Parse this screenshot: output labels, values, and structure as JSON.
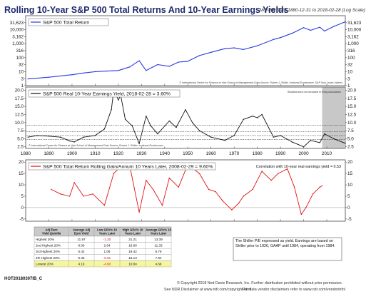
{
  "title": "Rolling 10-Year S&P 500 Total Returns And 10-Year Earnings Yields",
  "subtitle": "Monthly Data 1880-12-31 to 2018-02-28 (Log Scale)",
  "chart_data": [
    {
      "type": "line",
      "scale": "log",
      "legend": "S&P 500 Total Return",
      "legend_position": "top-left",
      "ylim": [
        1,
        100000
      ],
      "y_ticks": [
        "31,623",
        "10,000",
        "3,162",
        "1,000",
        "316",
        "100",
        "32",
        "10",
        "3",
        "1"
      ],
      "y_tick_values": [
        31623,
        10000,
        3162,
        1000,
        316,
        100,
        32,
        10,
        3,
        1
      ],
      "x": [
        1881,
        1890,
        1900,
        1905,
        1910,
        1915,
        1920,
        1925,
        1929,
        1932,
        1937,
        1942,
        1946,
        1950,
        1955,
        1960,
        1966,
        1970,
        1974,
        1980,
        1987,
        1990,
        1995,
        2000,
        2003,
        2007,
        2009,
        2013,
        2018
      ],
      "values": [
        3,
        4,
        6,
        8,
        10,
        11,
        12,
        22,
        60,
        12,
        32,
        24,
        48,
        55,
        140,
        240,
        440,
        500,
        380,
        700,
        2000,
        2700,
        5500,
        14000,
        9000,
        15000,
        8000,
        17000,
        37000
      ],
      "source": "© International Center for Finance at Yale School of Management Data Source: Robert J. Shiller, Irrational Exuberance, S&P Dow Jones Indices"
    },
    {
      "type": "line",
      "legend": "S&P 500 Real 10-Year Earnings Yield, 2018-02-28 = 3.60%",
      "legend_position": "top-left",
      "note": "Shaded area not included in tiling calculation",
      "ylim": [
        2,
        21
      ],
      "y_ticks": [
        "20.0",
        "17.5",
        "15.0",
        "12.5",
        "10.0",
        "7.5",
        "5.0",
        "2.5"
      ],
      "y_tick_values": [
        20,
        17.5,
        15,
        12.5,
        10,
        7.5,
        5,
        2.5
      ],
      "reference_lines": [
        9.2,
        7.2,
        6.0,
        4.8
      ],
      "shaded_x": [
        2008,
        2018
      ],
      "x": [
        1881,
        1885,
        1890,
        1895,
        1899,
        1901,
        1905,
        1910,
        1914,
        1917,
        1918,
        1920,
        1921,
        1923,
        1926,
        1929,
        1932,
        1934,
        1937,
        1942,
        1945,
        1949,
        1952,
        1955,
        1960,
        1966,
        1970,
        1974,
        1978,
        1980,
        1982,
        1987,
        1990,
        1995,
        2000,
        2003,
        2007,
        2009,
        2013,
        2018
      ],
      "values": [
        5.5,
        6.0,
        5.8,
        5.5,
        4.3,
        4.0,
        5.5,
        6.0,
        8.0,
        14.0,
        20.0,
        17.0,
        18.5,
        11.0,
        9.0,
        3.5,
        12.0,
        9.0,
        6.5,
        10.5,
        8.5,
        14.0,
        10.0,
        7.5,
        5.5,
        4.5,
        6.0,
        11.0,
        12.0,
        11.5,
        12.5,
        5.5,
        6.0,
        4.0,
        2.5,
        4.5,
        3.8,
        6.5,
        5.0,
        3.6
      ],
      "source": "© International Center for Finance at Yale School of Management Data Source: Robert J. Shiller, Irrational Exuberance"
    },
    {
      "type": "line",
      "legend": "S&P 500 Total Return Rolling Gain/Annum 10 Years Later, 2008-02-29 = 9.60%",
      "legend_position": "top-left",
      "annotation": "Correlation with 10-year real earnings yield = 0.53",
      "ylim": [
        -6,
        21
      ],
      "y_ticks": [
        "20",
        "15",
        "10",
        "5",
        "0",
        "-5"
      ],
      "y_tick_values": [
        20,
        15,
        10,
        5,
        0,
        -5
      ],
      "x": [
        1891,
        1895,
        1899,
        1901,
        1905,
        1909,
        1914,
        1918,
        1920,
        1925,
        1929,
        1932,
        1935,
        1939,
        1942,
        1946,
        1950,
        1955,
        1959,
        1962,
        1965,
        1969,
        1972,
        1974,
        1978,
        1982,
        1986,
        1989,
        1993,
        1996,
        1999,
        2001,
        2004,
        2007,
        2008
      ],
      "values": [
        8,
        6,
        5,
        11,
        5,
        6,
        1,
        15,
        17,
        18,
        -2,
        12,
        8,
        1,
        13,
        9,
        19,
        15,
        8,
        7,
        3,
        -1,
        2,
        5,
        8,
        16,
        12,
        15,
        17,
        9,
        -3,
        0,
        6,
        9,
        9.6
      ],
      "xlim": [
        1880,
        2018
      ],
      "x_ticks": [
        "1880",
        "1890",
        "1900",
        "1910",
        "1920",
        "1930",
        "1940",
        "1950",
        "1960",
        "1970",
        "1980",
        "1990",
        "2000",
        "2010"
      ],
      "x_tick_values": [
        1880,
        1890,
        1900,
        1910,
        1920,
        1930,
        1940,
        1950,
        1960,
        1970,
        1980,
        1990,
        2000,
        2010
      ]
    },
    {
      "type": "table",
      "headers": [
        "Adj Earn Yield Quintile",
        "Average Adj Earn Yield",
        "Low GPA% 10 Years Later",
        "High GPA% 10 Years Later",
        "Average GPA% 10 Years Later"
      ],
      "rows": [
        [
          "Highest 20%",
          "11.97",
          "-1.20",
          "21.21",
          "13.39"
        ],
        [
          "2nd Highest 20%",
          "8.09",
          "2.64",
          "18.80",
          "11.33"
        ],
        [
          "3rd Highest 20%",
          "6.42",
          "1.06",
          "19.42",
          "8.79"
        ],
        [
          "4th Highest 20%",
          "5.45",
          "-0.01",
          "18.13",
          "7.94"
        ],
        [
          "Lowest 20%",
          "4.19",
          "-4.60",
          "10.84",
          "4.69"
        ]
      ]
    }
  ],
  "footnote": "The Shiller P/E expressed as yield. Earnings are based on Shiller prior to 1926, GAAP until 1984, operating from 1984.",
  "footer": {
    "chart_code": "HOT20180307IB_C",
    "copyright": "© Copyright 2018 Ned Davis Research, Inc. Further distribution prohibited without prior permission.",
    "disclaimer": "See NDR Disclaimer at www.ndr.com/copyright.html",
    "vendor": "For data vendor disclaimers refer to www.ndr.com/vendorinfo/"
  },
  "colors": {
    "title": "#1e2a6e",
    "total_return": "#2a3adf",
    "earnings_yield": "#111111",
    "rolling_gain": "#e01010",
    "shade": "#c8c8c8",
    "table_header": "#c9c9c9",
    "table_highlight": "#f6f6a0",
    "negative": "#cc1111"
  }
}
